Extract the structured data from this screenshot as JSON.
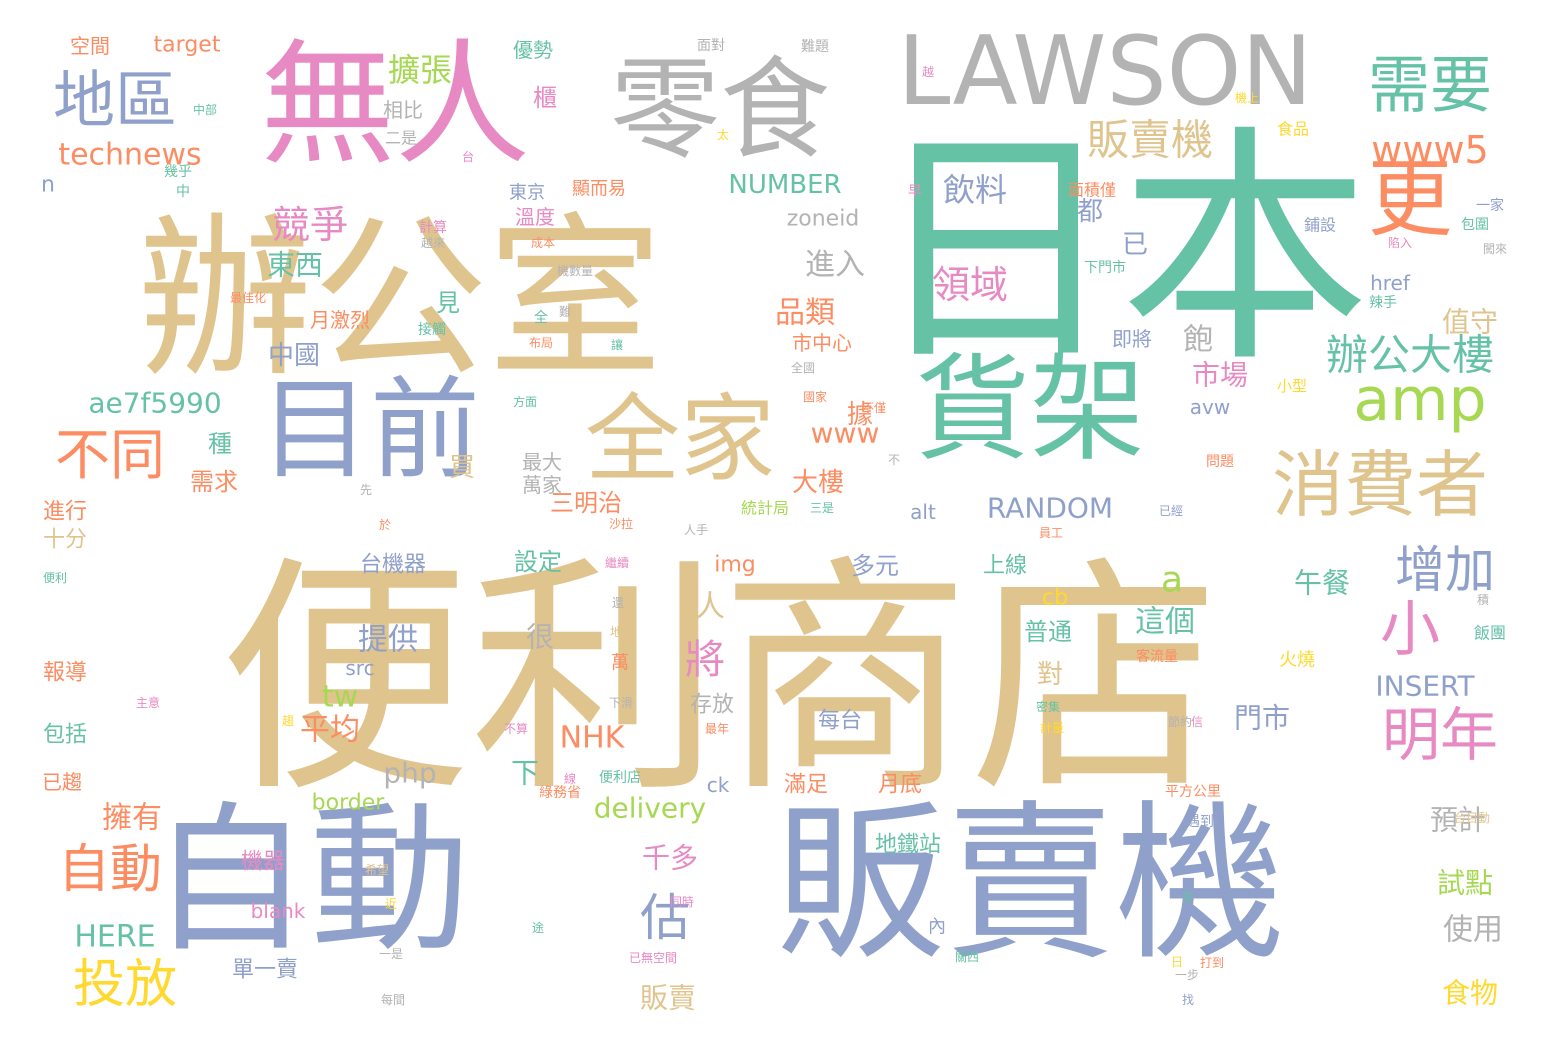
{
  "colors": {
    "beige": "#e0c48e",
    "blue": "#8fa0cb",
    "green": "#66c2a5",
    "pink": "#e78ac3",
    "grey": "#b3b3b3",
    "orange": "#fc8d62",
    "lime": "#a6d854",
    "yellow": "#ffd92f",
    "background": "#ffffff"
  },
  "words": [
    {
      "text": "便利商店",
      "color": "beige"
    },
    {
      "text": "日本",
      "color": "green"
    },
    {
      "text": "自動",
      "color": "blue"
    },
    {
      "text": "販賣機",
      "color": "blue"
    },
    {
      "text": "辦公室",
      "color": "beige"
    },
    {
      "text": "無人",
      "color": "pink"
    },
    {
      "text": "零食",
      "color": "grey"
    },
    {
      "text": "LAWSON",
      "color": "grey"
    },
    {
      "text": "貨架",
      "color": "green"
    },
    {
      "text": "目前",
      "color": "blue"
    },
    {
      "text": "全家",
      "color": "beige"
    },
    {
      "text": "更",
      "color": "orange"
    },
    {
      "text": "消費者",
      "color": "beige"
    },
    {
      "text": "需要",
      "color": "green"
    },
    {
      "text": "地區",
      "color": "blue"
    },
    {
      "text": "amp",
      "color": "lime"
    },
    {
      "text": "小",
      "color": "pink"
    },
    {
      "text": "明年",
      "color": "pink"
    },
    {
      "text": "增加",
      "color": "blue"
    },
    {
      "text": "辦公大樓",
      "color": "green"
    },
    {
      "text": "販賣機",
      "color": "beige"
    },
    {
      "text": "www5",
      "color": "orange"
    },
    {
      "text": "不同",
      "color": "orange"
    },
    {
      "text": "自動",
      "color": "orange"
    },
    {
      "text": "投放",
      "color": "yellow"
    },
    {
      "text": "估",
      "color": "blue"
    },
    {
      "text": "將",
      "color": "pink"
    },
    {
      "text": "競爭",
      "color": "pink"
    },
    {
      "text": "飲料",
      "color": "blue"
    },
    {
      "text": "領域",
      "color": "pink"
    },
    {
      "text": "technews",
      "color": "orange"
    },
    {
      "text": "擴張",
      "color": "lime"
    },
    {
      "text": "NUMBER",
      "color": "green"
    },
    {
      "text": "東西",
      "color": "green"
    },
    {
      "text": "RANDOM",
      "color": "blue"
    },
    {
      "text": "ae7f5990",
      "color": "green"
    },
    {
      "text": "delivery",
      "color": "lime"
    },
    {
      "text": "www",
      "color": "orange"
    },
    {
      "text": "進入",
      "color": "grey"
    },
    {
      "text": "市場",
      "color": "pink"
    },
    {
      "text": "品類",
      "color": "orange"
    },
    {
      "text": "提供",
      "color": "blue"
    },
    {
      "text": "這個",
      "color": "green"
    },
    {
      "text": "午餐",
      "color": "green"
    },
    {
      "text": "平均",
      "color": "orange"
    },
    {
      "text": "擁有",
      "color": "orange"
    },
    {
      "text": "NHK",
      "color": "orange"
    },
    {
      "text": "INSERT",
      "color": "blue"
    },
    {
      "text": "HERE",
      "color": "green"
    },
    {
      "text": "使用",
      "color": "grey"
    },
    {
      "text": "試點",
      "color": "lime"
    },
    {
      "text": "預計",
      "color": "grey"
    },
    {
      "text": "食物",
      "color": "yellow"
    },
    {
      "text": "門市",
      "color": "blue"
    },
    {
      "text": "php",
      "color": "grey"
    },
    {
      "text": "tw",
      "color": "lime"
    },
    {
      "text": "a",
      "color": "lime"
    },
    {
      "text": "值守",
      "color": "beige"
    },
    {
      "text": "飽",
      "color": "grey"
    },
    {
      "text": "中國",
      "color": "blue"
    },
    {
      "text": "販賣",
      "color": "beige"
    },
    {
      "text": "千多",
      "color": "pink"
    },
    {
      "text": "人",
      "color": "beige"
    },
    {
      "text": "下",
      "color": "green"
    },
    {
      "text": "很",
      "color": "grey"
    },
    {
      "text": "種",
      "color": "green"
    },
    {
      "text": "需求",
      "color": "orange"
    },
    {
      "text": "買",
      "color": "beige"
    },
    {
      "text": "已",
      "color": "blue"
    },
    {
      "text": "都",
      "color": "blue"
    },
    {
      "text": "據",
      "color": "orange"
    },
    {
      "text": "月激烈",
      "color": "orange"
    },
    {
      "text": "見",
      "color": "green"
    },
    {
      "text": "最大",
      "color": "grey"
    },
    {
      "text": "萬家",
      "color": "grey"
    },
    {
      "text": "三明治",
      "color": "orange"
    },
    {
      "text": "大樓",
      "color": "orange"
    },
    {
      "text": "市中心",
      "color": "orange"
    },
    {
      "text": "設定",
      "color": "green"
    },
    {
      "text": "多元",
      "color": "blue"
    },
    {
      "text": "上線",
      "color": "green"
    },
    {
      "text": "img",
      "color": "orange"
    },
    {
      "text": "cb",
      "color": "yellow"
    },
    {
      "text": "普通",
      "color": "green"
    },
    {
      "text": "對",
      "color": "beige"
    },
    {
      "text": "存放",
      "color": "grey"
    },
    {
      "text": "每台",
      "color": "blue"
    },
    {
      "text": "月底",
      "color": "orange"
    },
    {
      "text": "滿足",
      "color": "orange"
    },
    {
      "text": "地鐵站",
      "color": "green"
    },
    {
      "text": "機器",
      "color": "pink"
    },
    {
      "text": "blank",
      "color": "pink"
    },
    {
      "text": "單一賣",
      "color": "blue"
    },
    {
      "text": "台機器",
      "color": "blue"
    },
    {
      "text": "報導",
      "color": "orange"
    },
    {
      "text": "包括",
      "color": "green"
    },
    {
      "text": "進行",
      "color": "orange"
    },
    {
      "text": "十分",
      "color": "beige"
    },
    {
      "text": "已趨",
      "color": "orange"
    },
    {
      "text": "border",
      "color": "lime"
    },
    {
      "text": "ck",
      "color": "blue"
    },
    {
      "text": "src",
      "color": "blue"
    },
    {
      "text": "alt",
      "color": "blue"
    },
    {
      "text": "href",
      "color": "blue"
    },
    {
      "text": "avw",
      "color": "blue"
    },
    {
      "text": "zoneid",
      "color": "grey"
    },
    {
      "text": "target",
      "color": "orange"
    },
    {
      "text": "n",
      "color": "blue"
    },
    {
      "text": "空間",
      "color": "orange"
    },
    {
      "text": "優勢",
      "color": "green"
    },
    {
      "text": "櫃",
      "color": "pink"
    },
    {
      "text": "相比",
      "color": "grey"
    },
    {
      "text": "二是",
      "color": "grey"
    },
    {
      "text": "東京",
      "color": "blue"
    },
    {
      "text": "溫度",
      "color": "pink"
    },
    {
      "text": "顯而易",
      "color": "orange"
    },
    {
      "text": "面積僅",
      "color": "orange"
    },
    {
      "text": "食品",
      "color": "yellow"
    },
    {
      "text": "鋪設",
      "color": "blue"
    },
    {
      "text": "即將",
      "color": "blue"
    },
    {
      "text": "火燒",
      "color": "yellow"
    },
    {
      "text": "萬",
      "color": "orange"
    },
    {
      "text": "飯團",
      "color": "green"
    },
    {
      "text": "統計局",
      "color": "lime"
    },
    {
      "text": "平方公里",
      "color": "orange"
    },
    {
      "text": "小型",
      "color": "yellow"
    },
    {
      "text": "客流量",
      "color": "orange"
    },
    {
      "text": "問題",
      "color": "orange"
    },
    {
      "text": "下門市",
      "color": "green"
    },
    {
      "text": "遇到",
      "color": "blue"
    },
    {
      "text": "便利店",
      "color": "green"
    },
    {
      "text": "綠務省",
      "color": "orange"
    },
    {
      "text": "一家",
      "color": "blue"
    },
    {
      "text": "包圍",
      "color": "green"
    },
    {
      "text": "辣手",
      "color": "green"
    },
    {
      "text": "面對",
      "color": "grey"
    },
    {
      "text": "難題",
      "color": "grey"
    },
    {
      "text": "機上",
      "color": "yellow"
    },
    {
      "text": "中部",
      "color": "green"
    },
    {
      "text": "太",
      "color": "yellow"
    },
    {
      "text": "越",
      "color": "pink"
    },
    {
      "text": "台",
      "color": "pink"
    },
    {
      "text": "中",
      "color": "green"
    },
    {
      "text": "幾乎",
      "color": "green"
    },
    {
      "text": "計算",
      "color": "pink"
    },
    {
      "text": "越來",
      "color": "grey"
    },
    {
      "text": "成本",
      "color": "orange"
    },
    {
      "text": "機數量",
      "color": "grey"
    },
    {
      "text": "最佳化",
      "color": "orange"
    },
    {
      "text": "接觸",
      "color": "green"
    },
    {
      "text": "全",
      "color": "green"
    },
    {
      "text": "布局",
      "color": "orange"
    },
    {
      "text": "難",
      "color": "grey"
    },
    {
      "text": "讓",
      "color": "green"
    },
    {
      "text": "全國",
      "color": "grey"
    },
    {
      "text": "國家",
      "color": "orange"
    },
    {
      "text": "方面",
      "color": "green"
    },
    {
      "text": "不僅",
      "color": "orange"
    },
    {
      "text": "不",
      "color": "grey"
    },
    {
      "text": "先",
      "color": "grey"
    },
    {
      "text": "於",
      "color": "orange"
    },
    {
      "text": "沙拉",
      "color": "orange"
    },
    {
      "text": "三是",
      "color": "green"
    },
    {
      "text": "已經",
      "color": "blue"
    },
    {
      "text": "人手",
      "color": "grey"
    },
    {
      "text": "員工",
      "color": "orange"
    },
    {
      "text": "繼續",
      "color": "pink"
    },
    {
      "text": "便利",
      "color": "green"
    },
    {
      "text": "還",
      "color": "grey"
    },
    {
      "text": "地面",
      "color": "beige"
    },
    {
      "text": "積",
      "color": "grey"
    },
    {
      "text": "主意",
      "color": "pink"
    },
    {
      "text": "趨",
      "color": "yellow"
    },
    {
      "text": "下滑",
      "color": "grey"
    },
    {
      "text": "密集",
      "color": "green"
    },
    {
      "text": "計量",
      "color": "yellow"
    },
    {
      "text": "節約",
      "color": "grey"
    },
    {
      "text": "信",
      "color": "pink"
    },
    {
      "text": "不算",
      "color": "pink"
    },
    {
      "text": "最年",
      "color": "orange"
    },
    {
      "text": "線",
      "color": "pink"
    },
    {
      "text": "台目動",
      "color": "beige"
    },
    {
      "text": "希望",
      "color": "beige"
    },
    {
      "text": "近",
      "color": "yellow"
    },
    {
      "text": "途",
      "color": "green"
    },
    {
      "text": "同時",
      "color": "pink"
    },
    {
      "text": "並",
      "color": "green"
    },
    {
      "text": "一是",
      "color": "grey"
    },
    {
      "text": "已無空間",
      "color": "pink"
    },
    {
      "text": "關西",
      "color": "green"
    },
    {
      "text": "日",
      "color": "yellow"
    },
    {
      "text": "一步",
      "color": "grey"
    },
    {
      "text": "打到",
      "color": "orange"
    },
    {
      "text": "每間",
      "color": "grey"
    },
    {
      "text": "內",
      "color": "blue"
    },
    {
      "text": "找",
      "color": "blue"
    },
    {
      "text": "早",
      "color": "pink"
    },
    {
      "text": "陷入",
      "color": "pink"
    },
    {
      "text": "闖來",
      "color": "grey"
    }
  ]
}
